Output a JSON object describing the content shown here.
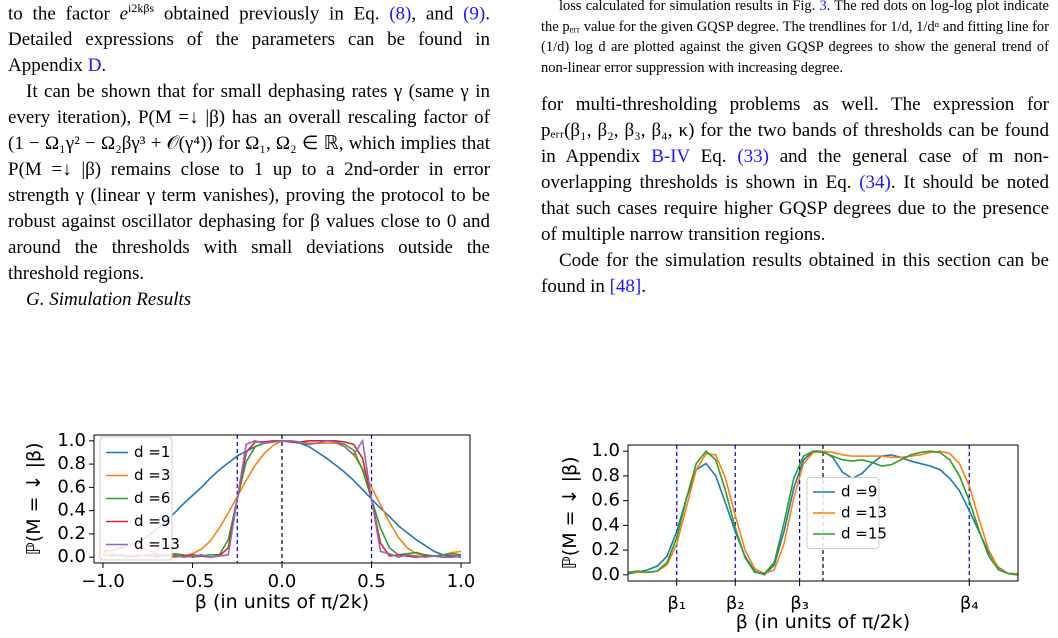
{
  "left_column": {
    "paragraphs": [
      [
        "to the factor ",
        "e",
        "i2kβs",
        " obtained previously in Eq. ",
        "(8)",
        ", and ",
        "(9)",
        ". Detailed expressions of the parameters can be found in Appendix ",
        "D",
        "."
      ],
      [
        "It can be shown that for small dephasing rates γ (same γ in every iteration), P(M =↓ |β) has an overall rescaling factor of (1 − Ω₁γ² − Ω₂βγ³ + 𝒪(γ⁴)) for Ω₁, Ω₂ ∈ ℝ, which implies that P(M =↓ |β) remains close to 1 up to a 2nd-order in error strength γ (linear γ term vanishes), proving the protocol to be robust against oscillator dephasing for β values close to 0 and around the thresholds with small deviations outside the threshold regions."
      ]
    ],
    "heading": "G. Simulation Results"
  },
  "right_column": {
    "caption": [
      "loss calculated for simulation results in Fig. ",
      "3",
      ". The red dots on log-log plot indicate the pₑᵣᵣ value for the given GQSP degree. The trendlines for 1/d, 1/dᵅ and fitting line for (1/d) log d are plotted against the given GQSP degrees to show the general trend of non-linear error suppression with increasing degree."
    ],
    "paragraphs": [
      [
        "for multi-thresholding problems as well. The expression for pₑᵣᵣ(β₁, β₂, β₃, β₄, κ) for the two bands of thresholds can be found in Appendix ",
        "B-IV",
        " Eq. ",
        "(33)",
        " and the general case of m non-overlapping thresholds is shown in Eq. ",
        "(34)",
        ". It should be noted that such cases require higher GQSP degrees due to the presence of multiple narrow transition regions."
      ],
      [
        "Code for the simulation results obtained in this section can be found in ",
        "[48]",
        "."
      ]
    ]
  },
  "chart_data": [
    {
      "type": "line",
      "x_label": "β (in units of π/2k)",
      "y_label": "ℙ(M = ↓ |β)",
      "xlim": [
        -1.05,
        1.05
      ],
      "ylim": [
        -0.05,
        1.05
      ],
      "xticks": [
        {
          "value": -1,
          "label": "−1.0"
        },
        {
          "value": -0.5,
          "label": "−0.5"
        },
        {
          "value": 0,
          "label": "0.0"
        },
        {
          "value": 0.5,
          "label": "0.5"
        },
        {
          "value": 1,
          "label": "1.0"
        }
      ],
      "yticks": [
        {
          "value": 0,
          "label": "0.0"
        },
        {
          "value": 0.2,
          "label": "0.2"
        },
        {
          "value": 0.4,
          "label": "0.4"
        },
        {
          "value": 0.6,
          "label": "0.6"
        },
        {
          "value": 0.8,
          "label": "0.8"
        },
        {
          "value": 1,
          "label": "1.0"
        }
      ],
      "legend": "upper left",
      "vlines": [
        {
          "x": -0.25,
          "color": "#0000cc"
        },
        {
          "x": 0,
          "color": "#000000"
        },
        {
          "x": 0.5,
          "color": "#0000cc"
        }
      ],
      "x": [
        -1,
        -0.95,
        -0.9,
        -0.85,
        -0.8,
        -0.75,
        -0.7,
        -0.65,
        -0.6,
        -0.55,
        -0.5,
        -0.45,
        -0.4,
        -0.35,
        -0.3,
        -0.25,
        -0.2,
        -0.15,
        -0.1,
        -0.05,
        0,
        0.05,
        0.1,
        0.15,
        0.2,
        0.25,
        0.3,
        0.35,
        0.4,
        0.45,
        0.5,
        0.55,
        0.6,
        0.65,
        0.7,
        0.75,
        0.8,
        0.85,
        0.9,
        0.95,
        1
      ],
      "series": [
        {
          "name": "d =1",
          "color": "#1f77b4",
          "values": [
            0.05,
            0.06,
            0.08,
            0.1,
            0.13,
            0.18,
            0.24,
            0.31,
            0.38,
            0.46,
            0.53,
            0.6,
            0.68,
            0.75,
            0.81,
            0.87,
            0.91,
            0.95,
            0.98,
            0.99,
            1.0,
            0.99,
            0.98,
            0.95,
            0.9,
            0.85,
            0.79,
            0.73,
            0.66,
            0.58,
            0.5,
            0.42,
            0.35,
            0.27,
            0.21,
            0.15,
            0.1,
            0.05,
            0.02,
            0.01,
            0.0
          ]
        },
        {
          "name": "d =3",
          "color": "#ff7f0e",
          "values": [
            0.03,
            0.06,
            0.09,
            0.1,
            0.09,
            0.06,
            0.03,
            0.01,
            0.0,
            0.01,
            0.03,
            0.07,
            0.14,
            0.25,
            0.38,
            0.52,
            0.66,
            0.79,
            0.89,
            0.96,
            1.0,
            1.0,
            0.99,
            0.98,
            0.98,
            0.98,
            0.98,
            0.95,
            0.88,
            0.76,
            0.6,
            0.45,
            0.3,
            0.17,
            0.08,
            0.03,
            0.01,
            0.01,
            0.02,
            0.04,
            0.05
          ]
        },
        {
          "name": "d =6",
          "color": "#2ca02c",
          "values": [
            0.01,
            0.02,
            0.01,
            0.0,
            0.01,
            0.02,
            0.02,
            0.01,
            0.03,
            0.02,
            0.0,
            0.01,
            0.02,
            0.02,
            0.15,
            0.5,
            0.82,
            0.95,
            0.98,
            0.99,
            1.0,
            1.0,
            0.98,
            0.97,
            0.98,
            1.0,
            0.99,
            0.97,
            0.92,
            0.75,
            0.5,
            0.25,
            0.08,
            0.02,
            0.03,
            0.04,
            0.02,
            0.01,
            0.02,
            0.03,
            0.02
          ]
        },
        {
          "name": "d =9",
          "color": "#d62728",
          "values": [
            0.02,
            0.01,
            0.02,
            0.01,
            0.01,
            0.02,
            0.01,
            0.02,
            0.01,
            0.01,
            0.02,
            0.01,
            0.0,
            0.01,
            0.08,
            0.5,
            0.9,
            0.99,
            0.99,
            1.0,
            1.0,
            0.99,
            0.99,
            1.0,
            1.0,
            1.0,
            1.0,
            0.99,
            0.97,
            0.85,
            0.5,
            0.12,
            0.01,
            0.02,
            0.01,
            0.0,
            0.01,
            0.01,
            0.0,
            0.01,
            0.01
          ]
        },
        {
          "name": "d =13",
          "color": "#9467bd",
          "values": [
            0.01,
            0.03,
            0.01,
            0.0,
            0.02,
            0.01,
            0.0,
            0.01,
            0.02,
            0.0,
            0.01,
            0.02,
            0.0,
            0.01,
            0.02,
            0.5,
            0.97,
            1.0,
            0.98,
            0.99,
            1.0,
            1.0,
            0.99,
            0.97,
            0.98,
            1.0,
            0.99,
            0.95,
            0.88,
            1.0,
            0.5,
            0.05,
            0.03,
            0.0,
            0.02,
            0.01,
            0.0,
            0.01,
            0.0,
            0.0,
            0.01
          ]
        }
      ]
    },
    {
      "type": "line",
      "x_label": "β (in units of π/2k)",
      "y_label": "ℙ(M = ↓ |β)",
      "xlim": [
        0,
        1
      ],
      "ylim": [
        -0.05,
        1.05
      ],
      "xticks": [
        {
          "value": 0.125,
          "label": "β₁"
        },
        {
          "value": 0.275,
          "label": "β₂"
        },
        {
          "value": 0.44,
          "label": "β₃"
        },
        {
          "value": 0.875,
          "label": "β₄"
        }
      ],
      "yticks": [
        {
          "value": 0,
          "label": "0.0"
        },
        {
          "value": 0.2,
          "label": "0.2"
        },
        {
          "value": 0.4,
          "label": "0.4"
        },
        {
          "value": 0.6,
          "label": "0.6"
        },
        {
          "value": 0.8,
          "label": "0.8"
        },
        {
          "value": 1,
          "label": "1.0"
        }
      ],
      "legend": "center",
      "vlines": [
        {
          "x": 0.125,
          "color": "#0000cc"
        },
        {
          "x": 0.275,
          "color": "#0000cc"
        },
        {
          "x": 0.44,
          "color": "#0000cc"
        },
        {
          "x": 0.5,
          "color": "#000000"
        },
        {
          "x": 0.875,
          "color": "#0000cc"
        }
      ],
      "x": [
        0,
        0.025,
        0.05,
        0.075,
        0.1,
        0.125,
        0.15,
        0.175,
        0.2,
        0.225,
        0.25,
        0.275,
        0.3,
        0.325,
        0.35,
        0.375,
        0.4,
        0.425,
        0.45,
        0.475,
        0.5,
        0.525,
        0.55,
        0.575,
        0.6,
        0.625,
        0.65,
        0.675,
        0.7,
        0.725,
        0.75,
        0.775,
        0.8,
        0.825,
        0.85,
        0.875,
        0.9,
        0.925,
        0.95,
        0.975,
        1
      ],
      "series": [
        {
          "name": "d =9",
          "color": "#1f77b4",
          "values": [
            0.01,
            0.02,
            0.04,
            0.07,
            0.15,
            0.35,
            0.62,
            0.85,
            0.9,
            0.8,
            0.58,
            0.35,
            0.15,
            0.03,
            0.0,
            0.08,
            0.35,
            0.7,
            0.93,
            1.0,
            1.0,
            0.95,
            0.83,
            0.78,
            0.82,
            0.9,
            0.96,
            0.97,
            0.95,
            0.92,
            0.9,
            0.88,
            0.85,
            0.78,
            0.68,
            0.52,
            0.35,
            0.18,
            0.06,
            0.01,
            0.0
          ]
        },
        {
          "name": "d =13",
          "color": "#ff7f0e",
          "values": [
            0.02,
            0.02,
            0.02,
            0.03,
            0.08,
            0.25,
            0.55,
            0.85,
            0.98,
            0.97,
            0.78,
            0.48,
            0.2,
            0.05,
            0.01,
            0.04,
            0.25,
            0.62,
            0.9,
            0.99,
            1.0,
            0.99,
            0.97,
            0.96,
            0.96,
            0.96,
            0.96,
            0.95,
            0.95,
            0.96,
            0.97,
            0.99,
            1.0,
            0.98,
            0.9,
            0.72,
            0.45,
            0.2,
            0.05,
            0.01,
            0.01
          ]
        },
        {
          "name": "d =15",
          "color": "#2ca02c",
          "values": [
            0.02,
            0.03,
            0.02,
            0.03,
            0.1,
            0.3,
            0.62,
            0.9,
            1.0,
            0.93,
            0.68,
            0.38,
            0.14,
            0.02,
            0.01,
            0.1,
            0.42,
            0.78,
            0.96,
            1.0,
            0.99,
            0.96,
            0.93,
            0.92,
            0.93,
            0.91,
            0.88,
            0.89,
            0.93,
            0.97,
            0.99,
            1.0,
            0.99,
            0.93,
            0.8,
            0.6,
            0.36,
            0.15,
            0.04,
            0.01,
            0.0
          ]
        }
      ]
    }
  ]
}
